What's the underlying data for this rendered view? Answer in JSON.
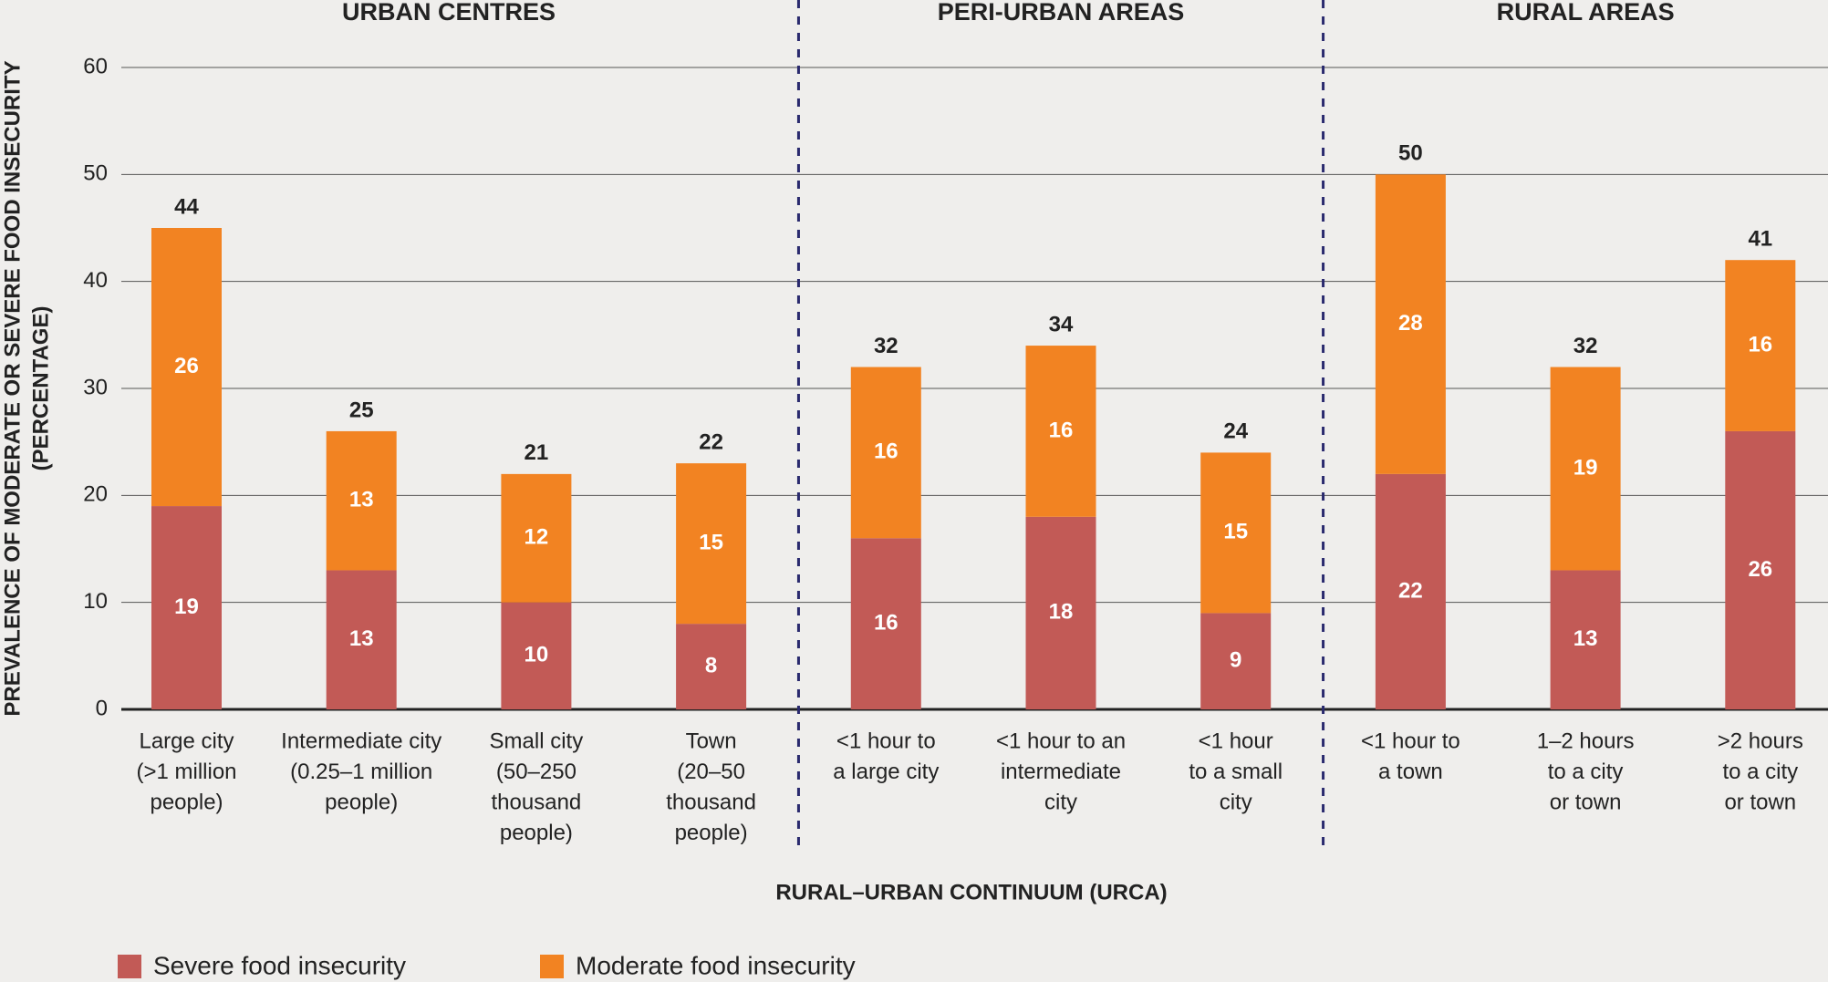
{
  "chart_data": {
    "type": "stacked-bar",
    "groups": [
      {
        "name": "URBAN CENTRES",
        "categories": [
          [
            "Large city",
            "(>1 million",
            "people)"
          ],
          [
            "Intermediate city",
            "(0.25–1 million",
            "people)"
          ],
          [
            "Small city",
            "(50–250",
            "thousand",
            "people)"
          ],
          [
            "Town",
            "(20–50",
            "thousand",
            "people)"
          ]
        ]
      },
      {
        "name": "PERI-URBAN AREAS",
        "categories": [
          [
            "<1 hour to",
            "a large city"
          ],
          [
            "<1 hour to an",
            "intermediate",
            "city"
          ],
          [
            "<1 hour",
            "to a small",
            "city"
          ]
        ]
      },
      {
        "name": "RURAL AREAS",
        "categories": [
          [
            "<1 hour to",
            "a town"
          ],
          [
            "1–2 hours",
            "to a city",
            "or town"
          ],
          [
            ">2 hours",
            "to a city",
            "or town"
          ]
        ]
      }
    ],
    "series": [
      {
        "name": "Severe food insecurity",
        "color": "#c25a56",
        "values": [
          19,
          13,
          10,
          8,
          16,
          18,
          9,
          22,
          13,
          26
        ]
      },
      {
        "name": "Moderate food insecurity",
        "color": "#f28322",
        "values": [
          26,
          13,
          12,
          15,
          16,
          16,
          15,
          28,
          19,
          16
        ]
      }
    ],
    "totals": [
      44,
      25,
      21,
      22,
      32,
      34,
      24,
      50,
      32,
      41
    ],
    "ylabel": [
      "PREVALENCE OF MODERATE OR SEVERE FOOD INSECURITY",
      "(PERCENTAGE)"
    ],
    "xlabel": "RURAL–URBAN CONTINUUM (URCA)",
    "ylim": [
      0,
      60
    ],
    "yticks": [
      0,
      10,
      20,
      30,
      40,
      50,
      60
    ],
    "grid": true
  }
}
